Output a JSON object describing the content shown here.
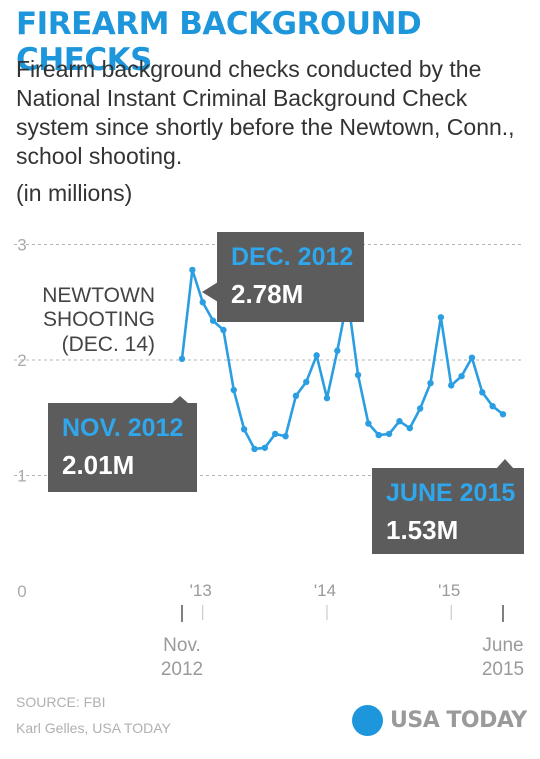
{
  "header": {
    "title": "FIREARM BACKGROUND CHECKS",
    "subtitle": "Firearm background checks conducted by the National Instant Criminal Background Check system since shortly before the Newtown, Conn., school shooting.",
    "units": "(in millions)"
  },
  "chart_data": {
    "type": "line",
    "title": "FIREARM BACKGROUND CHECKS",
    "ylabel": "(in millions)",
    "ylim": [
      0,
      3
    ],
    "yticks": [
      "0",
      "1",
      "2",
      "3"
    ],
    "grid": true,
    "x_start": "Nov. 2012",
    "x_end": "June 2015",
    "year_ticks": [
      "'13",
      "'14",
      "'15"
    ],
    "start_label": [
      "Nov.",
      "2012"
    ],
    "end_label": [
      "June",
      "2015"
    ],
    "x": [
      "2012-11",
      "2012-12",
      "2013-01",
      "2013-02",
      "2013-03",
      "2013-04",
      "2013-05",
      "2013-06",
      "2013-07",
      "2013-08",
      "2013-09",
      "2013-10",
      "2013-11",
      "2013-12",
      "2014-01",
      "2014-02",
      "2014-03",
      "2014-04",
      "2014-05",
      "2014-06",
      "2014-07",
      "2014-08",
      "2014-09",
      "2014-10",
      "2014-11",
      "2014-12",
      "2015-01",
      "2015-02",
      "2015-03",
      "2015-04",
      "2015-05",
      "2015-06"
    ],
    "series": [
      {
        "color": "#2a9ee0",
        "values": [
          2.01,
          2.78,
          2.5,
          2.34,
          2.26,
          1.74,
          1.4,
          1.23,
          1.24,
          1.36,
          1.34,
          1.69,
          1.81,
          2.04,
          1.67,
          2.08,
          2.54,
          1.87,
          1.45,
          1.35,
          1.36,
          1.47,
          1.41,
          1.58,
          1.8,
          2.37,
          1.78,
          1.86,
          2.02,
          1.72,
          1.6,
          1.53
        ]
      }
    ],
    "annotations": [
      {
        "label": "NEWTOWN",
        "sub": [
          "SHOOTING",
          "(DEC. 14)"
        ]
      },
      {
        "label": "DEC. 2012",
        "value": "2.78M"
      },
      {
        "label": "NOV. 2012",
        "value": "2.01M"
      },
      {
        "label": "JUNE 2015",
        "value": "1.53M"
      }
    ]
  },
  "footer": {
    "source": "SOURCE:  FBI",
    "credit": "Karl Gelles, USA TODAY",
    "logo": "USA TODAY",
    "logo_color": "#1e96dc"
  }
}
